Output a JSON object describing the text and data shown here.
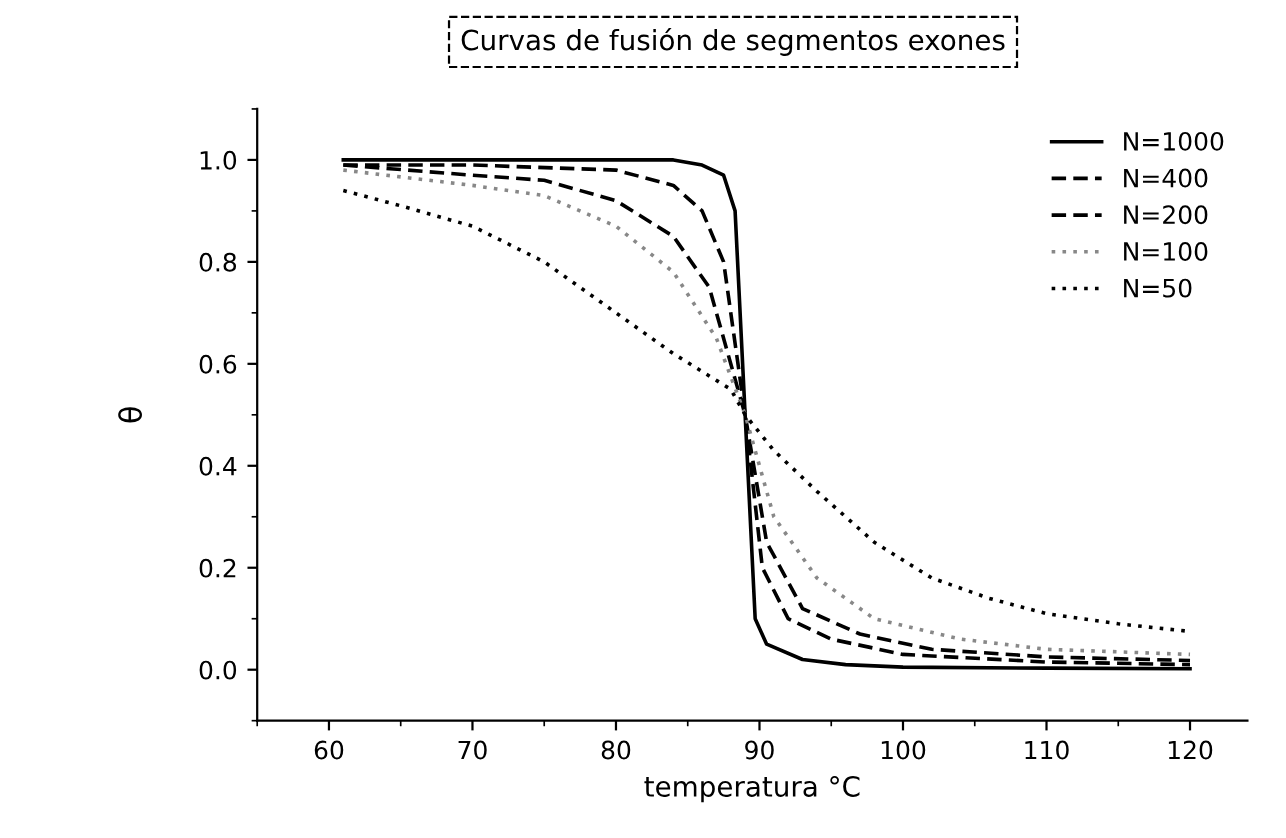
{
  "chart_data": {
    "type": "line",
    "title": "Curvas de fusión de segmentos exones",
    "xlabel": "temperatura °C",
    "ylabel": "θ",
    "xlim": [
      55,
      124
    ],
    "ylim": [
      -0.1,
      1.1
    ],
    "xticks": [
      60,
      70,
      80,
      90,
      100,
      110,
      120
    ],
    "yticks": [
      {
        "value": 0.0,
        "label": "0.0"
      },
      {
        "value": 0.2,
        "label": "0.2"
      },
      {
        "value": 0.4,
        "label": "0.4"
      },
      {
        "value": 0.6,
        "label": "0.6"
      },
      {
        "value": 0.8,
        "label": "0.8"
      },
      {
        "value": 1.0,
        "label": "1.0"
      }
    ],
    "grid": false,
    "legend": "top right",
    "series": [
      {
        "name": "N=1000",
        "color": "#000000",
        "line_style": "solid",
        "x": [
          61,
          70,
          80,
          84,
          86,
          87.5,
          88.3,
          89,
          89.7,
          90.5,
          93,
          96,
          100,
          110,
          120
        ],
        "values": [
          1.0,
          1.0,
          1.0,
          1.0,
          0.99,
          0.97,
          0.9,
          0.5,
          0.1,
          0.05,
          0.02,
          0.01,
          0.005,
          0.003,
          0.002
        ]
      },
      {
        "name": "N=400",
        "color": "#000000",
        "line_style": "dashed",
        "x": [
          61,
          70,
          80,
          84,
          86,
          87.5,
          89,
          90.2,
          92,
          95,
          100,
          110,
          120
        ],
        "values": [
          0.99,
          0.99,
          0.98,
          0.95,
          0.9,
          0.8,
          0.5,
          0.2,
          0.1,
          0.06,
          0.03,
          0.015,
          0.01
        ]
      },
      {
        "name": "N=200",
        "color": "#000000",
        "line_style": "dashed",
        "x": [
          61,
          70,
          75,
          80,
          84,
          86.5,
          89,
          90.5,
          93,
          97,
          102,
          110,
          120
        ],
        "values": [
          0.99,
          0.97,
          0.96,
          0.92,
          0.85,
          0.75,
          0.5,
          0.25,
          0.12,
          0.07,
          0.04,
          0.025,
          0.018
        ]
      },
      {
        "name": "N=100",
        "color": "#888888",
        "line_style": "dotted",
        "x": [
          61,
          70,
          75,
          80,
          84,
          87,
          89,
          91,
          94,
          98,
          104,
          110,
          120
        ],
        "values": [
          0.98,
          0.95,
          0.93,
          0.87,
          0.78,
          0.65,
          0.5,
          0.3,
          0.18,
          0.1,
          0.06,
          0.04,
          0.03
        ]
      },
      {
        "name": "N=50",
        "color": "#000000",
        "line_style": "dotted",
        "x": [
          61,
          65,
          70,
          75,
          80,
          84,
          88,
          89,
          91,
          94,
          98,
          102,
          106,
          110,
          115,
          120
        ],
        "values": [
          0.94,
          0.91,
          0.87,
          0.8,
          0.7,
          0.62,
          0.55,
          0.5,
          0.43,
          0.35,
          0.25,
          0.18,
          0.14,
          0.11,
          0.09,
          0.075
        ]
      }
    ]
  }
}
